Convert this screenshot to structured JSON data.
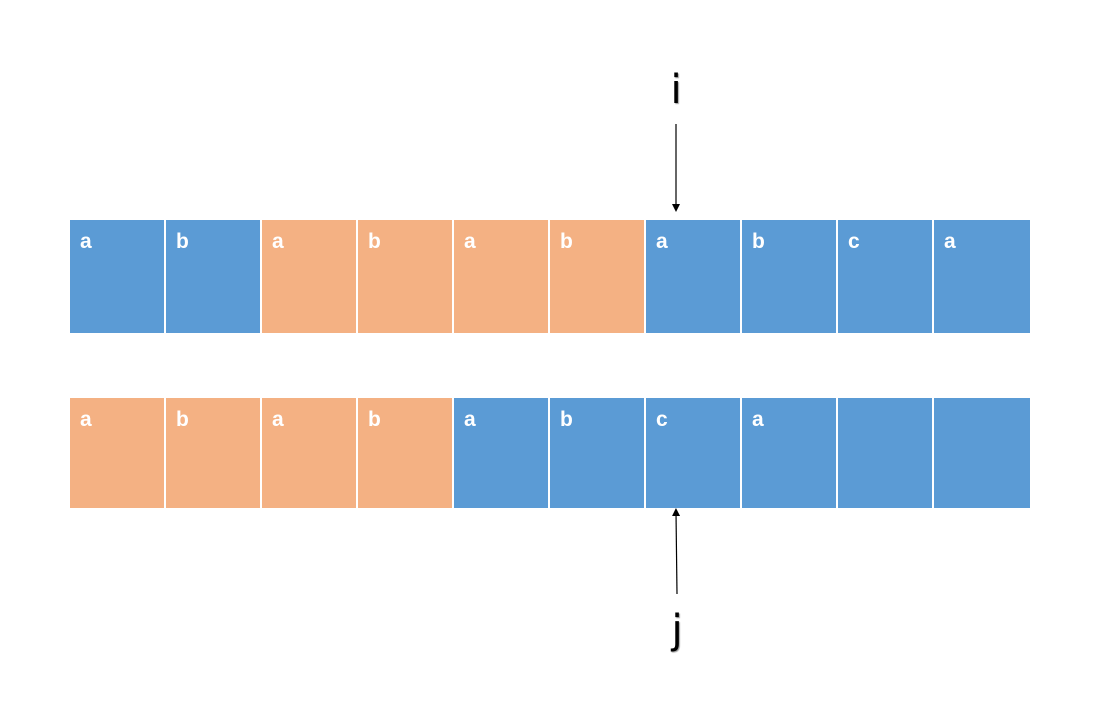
{
  "colors": {
    "blue": "#5b9bd5",
    "orange": "#f4b183"
  },
  "pointers": {
    "i": "i",
    "j": "j"
  },
  "rows": {
    "top": [
      {
        "label": "a",
        "color": "blue"
      },
      {
        "label": "b",
        "color": "blue"
      },
      {
        "label": "a",
        "color": "orange"
      },
      {
        "label": "b",
        "color": "orange"
      },
      {
        "label": "a",
        "color": "orange"
      },
      {
        "label": "b",
        "color": "orange"
      },
      {
        "label": "a",
        "color": "blue"
      },
      {
        "label": "b",
        "color": "blue"
      },
      {
        "label": "c",
        "color": "blue"
      },
      {
        "label": "a",
        "color": "blue"
      }
    ],
    "bottom": [
      {
        "label": "a",
        "color": "orange"
      },
      {
        "label": "b",
        "color": "orange"
      },
      {
        "label": "a",
        "color": "orange"
      },
      {
        "label": "b",
        "color": "orange"
      },
      {
        "label": "a",
        "color": "blue"
      },
      {
        "label": "b",
        "color": "blue"
      },
      {
        "label": "c",
        "color": "blue"
      },
      {
        "label": "a",
        "color": "blue"
      },
      {
        "label": "",
        "color": "blue"
      },
      {
        "label": "",
        "color": "blue"
      }
    ]
  }
}
